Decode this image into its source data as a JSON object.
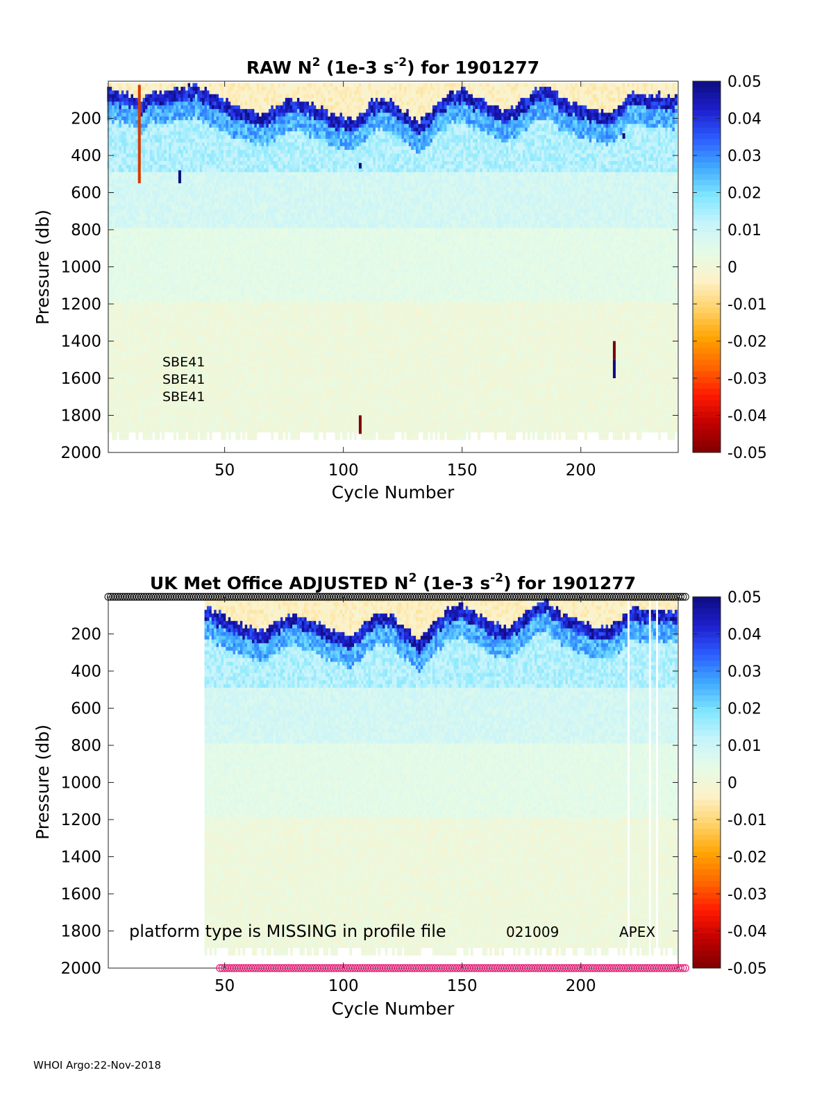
{
  "footer": "WHOI Argo:22-Nov-2018",
  "colors": {
    "cmap": [
      "#7f0000",
      "#bf0000",
      "#ff1a00",
      "#ff6600",
      "#ffa300",
      "#ffd166",
      "#fdf1c8",
      "#e6fbe6",
      "#c8f4fb",
      "#7fe6ff",
      "#3fa9ff",
      "#2b5cff",
      "#1e1ecc",
      "#0d0d80"
    ],
    "missing_marker": "#e8207a",
    "profile_marker": "#000000"
  },
  "chart_data": [
    {
      "type": "heatmap",
      "title": {
        "prefix": "RAW N",
        "sup1": "2",
        "mid": " (1e-3 s",
        "sup2": "-2",
        "suffix": ") for 1901277"
      },
      "xlabel": "Cycle Number",
      "ylabel": "Pressure (db)",
      "xlim": [
        1,
        241
      ],
      "ylim": [
        2000,
        0
      ],
      "xticks": [
        "50",
        "100",
        "150",
        "200"
      ],
      "yticks": [
        "200",
        "400",
        "600",
        "800",
        "1000",
        "1200",
        "1400",
        "1600",
        "1800",
        "2000"
      ],
      "colorbar": {
        "range": [
          -0.05,
          0.05
        ],
        "ticks": [
          "0.05",
          "0.04",
          "0.03",
          "0.02",
          "0.01",
          "0",
          "-0.01",
          "-0.02",
          "-0.03",
          "-0.04",
          "-0.05"
        ]
      },
      "cycles_with_data": [
        1,
        240
      ],
      "max_pressure_by_cycle": 1900,
      "mixed_layer_depth_profile": [
        [
          1,
          60
        ],
        [
          10,
          90
        ],
        [
          14,
          130
        ],
        [
          20,
          80
        ],
        [
          30,
          60
        ],
        [
          38,
          40
        ],
        [
          45,
          90
        ],
        [
          52,
          140
        ],
        [
          60,
          180
        ],
        [
          66,
          200
        ],
        [
          72,
          150
        ],
        [
          80,
          110
        ],
        [
          88,
          150
        ],
        [
          96,
          200
        ],
        [
          104,
          230
        ],
        [
          108,
          180
        ],
        [
          114,
          110
        ],
        [
          120,
          120
        ],
        [
          126,
          180
        ],
        [
          132,
          240
        ],
        [
          138,
          160
        ],
        [
          144,
          90
        ],
        [
          150,
          60
        ],
        [
          156,
          110
        ],
        [
          162,
          150
        ],
        [
          168,
          180
        ],
        [
          174,
          140
        ],
        [
          180,
          70
        ],
        [
          186,
          40
        ],
        [
          192,
          110
        ],
        [
          200,
          150
        ],
        [
          206,
          180
        ],
        [
          212,
          190
        ],
        [
          216,
          140
        ],
        [
          222,
          80
        ],
        [
          230,
          90
        ],
        [
          240,
          100
        ]
      ],
      "outliers": [
        {
          "cycle": 14,
          "p_top": 20,
          "p_bottom": 550,
          "sign": "mixed"
        },
        {
          "cycle": 31,
          "p_top": 480,
          "p_bottom": 550,
          "sign": "positive"
        },
        {
          "cycle": 107,
          "p_top": 440,
          "p_bottom": 470,
          "sign": "positive"
        },
        {
          "cycle": 107,
          "p_top": 1800,
          "p_bottom": 1900,
          "sign": "negative"
        },
        {
          "cycle": 214,
          "p_top": 1400,
          "p_bottom": 1500,
          "sign": "negative"
        },
        {
          "cycle": 214,
          "p_top": 1500,
          "p_bottom": 1600,
          "sign": "positive"
        },
        {
          "cycle": 218,
          "p_top": 280,
          "p_bottom": 310,
          "sign": "positive"
        }
      ],
      "annotations": [
        "SBE41",
        "SBE41",
        "SBE41"
      ]
    },
    {
      "type": "heatmap",
      "title": {
        "prefix": "UK Met Office  ADJUSTED N",
        "sup1": "2",
        "mid": " (1e-3 s",
        "sup2": "-2",
        "suffix": ") for 1901277"
      },
      "xlabel": "Cycle Number",
      "ylabel": "Pressure (db)",
      "xlim": [
        1,
        241
      ],
      "ylim": [
        2000,
        0
      ],
      "xticks": [
        "50",
        "100",
        "150",
        "200"
      ],
      "yticks": [
        "200",
        "400",
        "600",
        "800",
        "1000",
        "1200",
        "1400",
        "1600",
        "1800",
        "2000"
      ],
      "colorbar": {
        "range": [
          -0.05,
          0.05
        ],
        "ticks": [
          "0.05",
          "0.04",
          "0.03",
          "0.02",
          "0.01",
          "0",
          "-0.01",
          "-0.02",
          "-0.03",
          "-0.04",
          "-0.05"
        ]
      },
      "cycles_with_data": [
        42,
        240
      ],
      "max_pressure_by_cycle": 1900,
      "missing_columns": [
        220,
        229,
        232
      ],
      "profile_marker_cycles": [
        1,
        244
      ],
      "missing_marker_cycles": [
        48,
        244
      ],
      "annotations": [
        "platform type is MISSING in profile file",
        "021009",
        "APEX"
      ]
    }
  ]
}
